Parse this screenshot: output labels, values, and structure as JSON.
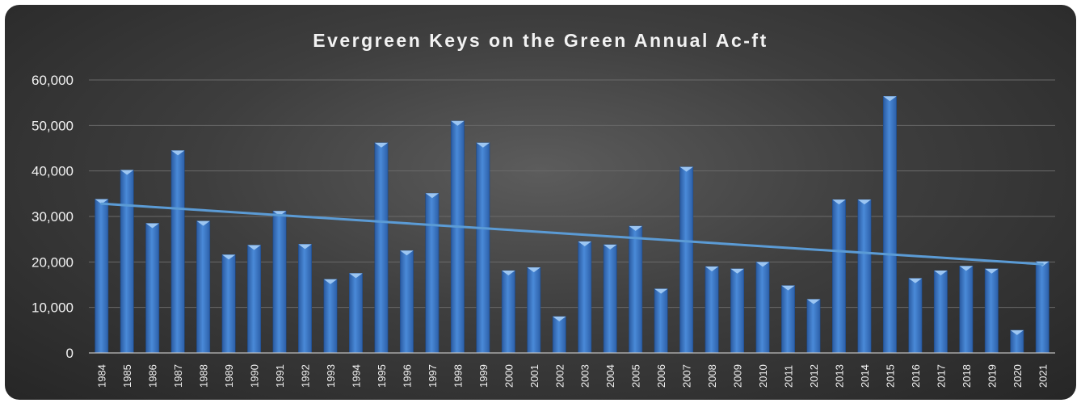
{
  "chart_data": {
    "type": "bar",
    "title": "Evergreen Keys on the Green Annual Ac-ft",
    "xlabel": "",
    "ylabel": "",
    "ylim": [
      0,
      60000
    ],
    "yticks": [
      0,
      10000,
      20000,
      30000,
      40000,
      50000,
      60000
    ],
    "ytick_labels": [
      "0",
      "10,000",
      "20,000",
      "30,000",
      "40,000",
      "50,000",
      "60,000"
    ],
    "grid": true,
    "legend": "none",
    "bar_color": "#3b78c7",
    "trendline": {
      "type": "linear",
      "color": "#5b9bd5",
      "start_value": 32800,
      "end_value": 19500
    },
    "categories": [
      "1984",
      "1985",
      "1986",
      "1987",
      "1988",
      "1989",
      "1990",
      "1991",
      "1992",
      "1993",
      "1994",
      "1995",
      "1996",
      "1997",
      "1998",
      "1999",
      "2000",
      "2001",
      "2002",
      "2003",
      "2004",
      "2005",
      "2006",
      "2007",
      "2008",
      "2009",
      "2010",
      "2011",
      "2012",
      "2013",
      "2014",
      "2015",
      "2016",
      "2017",
      "2018",
      "2019",
      "2020",
      "2021"
    ],
    "values": [
      33800,
      40200,
      28500,
      44500,
      29000,
      21600,
      23700,
      31200,
      23900,
      16200,
      17500,
      46200,
      22500,
      35100,
      51000,
      46200,
      18100,
      18800,
      8000,
      24500,
      23800,
      27900,
      14100,
      40900,
      19000,
      18500,
      20000,
      14800,
      11800,
      33700,
      33700,
      56400,
      16400,
      18100,
      19100,
      18500,
      5000,
      20100
    ]
  }
}
